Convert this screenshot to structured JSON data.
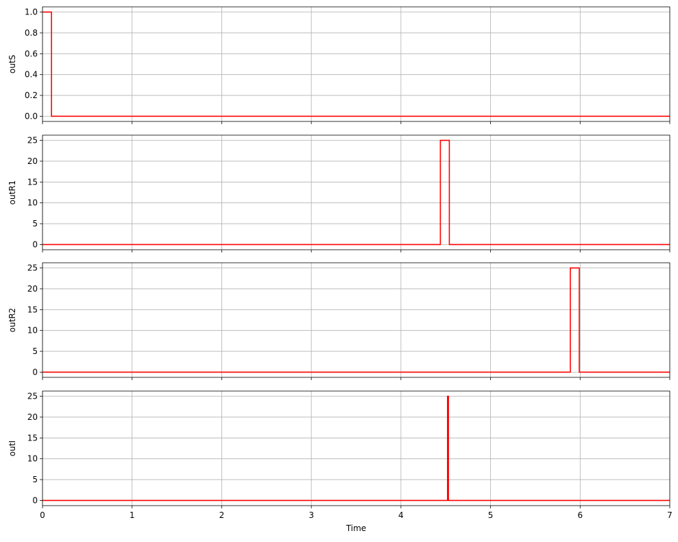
{
  "chart_data": [
    {
      "type": "line",
      "ylabel": "outS",
      "xlim": [
        0,
        7
      ],
      "ylim": [
        -0.05,
        1.05
      ],
      "yticks": [
        0.0,
        0.2,
        0.4,
        0.6,
        0.8,
        1.0
      ],
      "ytick_labels": [
        "0.0",
        "0.2",
        "0.4",
        "0.6",
        "0.8",
        "1.0"
      ],
      "grid": true,
      "series": [
        {
          "color": "#ff0000",
          "x": [
            0,
            0.1,
            0.1,
            7
          ],
          "y": [
            1,
            1,
            0,
            0
          ]
        }
      ]
    },
    {
      "type": "line",
      "ylabel": "outR1",
      "xlim": [
        0,
        7
      ],
      "ylim": [
        -1.25,
        26.25
      ],
      "yticks": [
        0,
        5,
        10,
        15,
        20,
        25
      ],
      "ytick_labels": [
        "0",
        "5",
        "10",
        "15",
        "20",
        "25"
      ],
      "grid": true,
      "series": [
        {
          "color": "#ff0000",
          "x": [
            0,
            4.44,
            4.44,
            4.54,
            4.54,
            7
          ],
          "y": [
            0,
            0,
            25,
            25,
            0,
            0
          ]
        }
      ]
    },
    {
      "type": "line",
      "ylabel": "outR2",
      "xlim": [
        0,
        7
      ],
      "ylim": [
        -1.25,
        26.25
      ],
      "yticks": [
        0,
        5,
        10,
        15,
        20,
        25
      ],
      "ytick_labels": [
        "0",
        "5",
        "10",
        "15",
        "20",
        "25"
      ],
      "grid": true,
      "series": [
        {
          "color": "#ff0000",
          "x": [
            0,
            5.89,
            5.89,
            5.99,
            5.99,
            7
          ],
          "y": [
            0,
            0,
            25,
            25,
            0,
            0
          ]
        }
      ]
    },
    {
      "type": "line",
      "ylabel": "outI",
      "xlabel": "Time",
      "xlim": [
        0,
        7
      ],
      "ylim": [
        -1.25,
        26.25
      ],
      "yticks": [
        0,
        5,
        10,
        15,
        20,
        25
      ],
      "ytick_labels": [
        "0",
        "5",
        "10",
        "15",
        "20",
        "25"
      ],
      "xticks": [
        0,
        1,
        2,
        3,
        4,
        5,
        6,
        7
      ],
      "xtick_labels": [
        "0",
        "1",
        "2",
        "3",
        "4",
        "5",
        "6",
        "7"
      ],
      "grid": true,
      "series": [
        {
          "color": "#ff0000",
          "x": [
            0,
            4.52,
            4.52,
            4.53,
            4.53,
            7
          ],
          "y": [
            0,
            0,
            25,
            25,
            0,
            0
          ]
        }
      ]
    }
  ]
}
